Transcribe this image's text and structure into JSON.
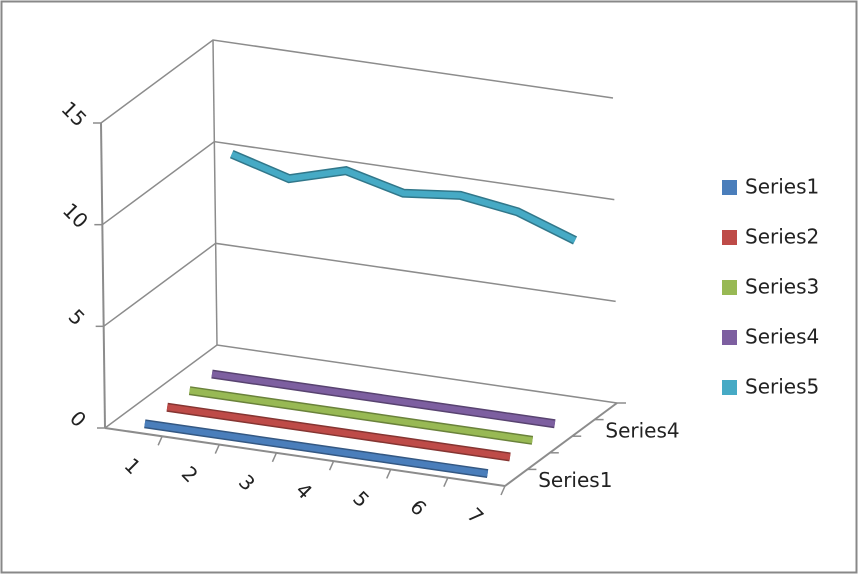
{
  "chart_data": {
    "type": "line3d",
    "categories": [
      "1",
      "2",
      "3",
      "4",
      "5",
      "6",
      "7"
    ],
    "series": [
      {
        "name": "Series1",
        "color": "#4a7ebb",
        "values": [
          0,
          0,
          0,
          0,
          0,
          0,
          0
        ]
      },
      {
        "name": "Series2",
        "color": "#be4b48",
        "values": [
          0,
          0,
          0,
          0,
          0,
          0,
          0
        ]
      },
      {
        "name": "Series3",
        "color": "#98b954",
        "values": [
          0,
          0,
          0,
          0,
          0,
          0,
          0
        ]
      },
      {
        "name": "Series4",
        "color": "#7d5fa0",
        "values": [
          0,
          0,
          0,
          0,
          0,
          0,
          0
        ]
      },
      {
        "name": "Series5",
        "color": "#46aac5",
        "values": [
          10,
          9.2,
          10,
          9.3,
          9.6,
          9.2,
          8.2
        ]
      }
    ],
    "ylim": [
      0,
      15
    ],
    "yticks": [
      0,
      5,
      10,
      15
    ],
    "grid": true,
    "legend": "right"
  }
}
